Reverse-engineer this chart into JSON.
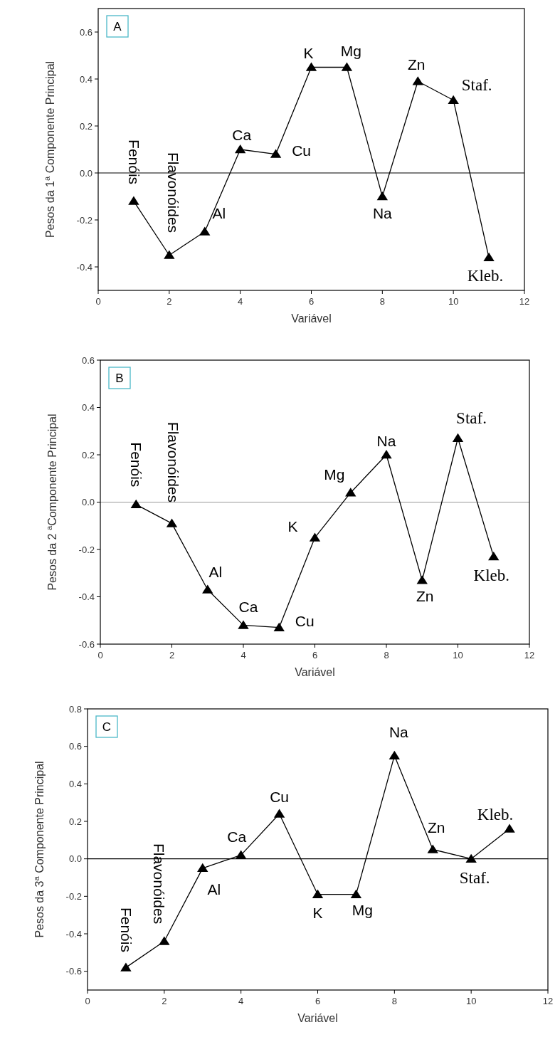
{
  "chart_data": [
    {
      "type": "line",
      "xlabel": "Variável",
      "ylabel": "Pesos da 1$^{a}$ Componente Principal",
      "x": [
        1,
        2,
        3,
        4,
        5,
        6,
        7,
        8,
        9,
        10,
        11
      ],
      "series": [
        {
          "color": "#000000",
          "values": [
            -0.12,
            -0.35,
            -0.25,
            0.1,
            0.08,
            0.45,
            0.45,
            -0.1,
            0.39,
            0.31,
            -0.36
          ]
        }
      ],
      "xlim": [
        0,
        12
      ],
      "xticks": [
        0,
        2,
        4,
        6,
        8,
        10,
        12
      ],
      "ylim": [
        -0.5,
        0.7
      ],
      "yticks": [
        {
          "value": -0.4,
          "label": "-0.4"
        },
        {
          "value": -0.2,
          "label": "-0.2"
        },
        {
          "value": 0,
          "label": "0.0"
        },
        {
          "value": 0.2,
          "label": "0.2"
        },
        {
          "value": 0.4,
          "label": "0.4"
        },
        {
          "value": 0.6,
          "label": "0.6"
        }
      ],
      "ref_lines": [
        {
          "axis": "y",
          "value": 0,
          "color": "#000000"
        }
      ],
      "marker": "triangle",
      "line_style": "solid",
      "grid": false,
      "annotations": [
        "A",
        {
          "text": "Fenóis",
          "x": 1,
          "y": -0.12
        },
        {
          "text": "Flavonóides",
          "x": 2,
          "y": -0.35
        },
        {
          "text": "Al",
          "x": 3,
          "y": -0.25
        },
        {
          "text": "Ca",
          "x": 4,
          "y": 0.1
        },
        {
          "text": "Cu",
          "x": 5,
          "y": 0.08
        },
        {
          "text": "K",
          "x": 6,
          "y": 0.45
        },
        {
          "text": "Mg",
          "x": 7,
          "y": 0.45
        },
        {
          "text": "Na",
          "x": 8,
          "y": -0.1
        },
        {
          "text": "Zn",
          "x": 9,
          "y": 0.39
        },
        {
          "text": "Staf.",
          "x": 10,
          "y": 0.31
        },
        {
          "text": "Kleb.",
          "x": 11,
          "y": -0.36
        }
      ]
    },
    {
      "type": "line",
      "xlabel": "Variável",
      "ylabel": "Pesos da 2 $^{a}$Componente Principal",
      "x": [
        1,
        2,
        3,
        4,
        5,
        6,
        7,
        8,
        9,
        10,
        11
      ],
      "series": [
        {
          "color": "#000000",
          "values": [
            -0.01,
            -0.09,
            -0.37,
            -0.52,
            -0.53,
            -0.15,
            0.04,
            0.2,
            -0.33,
            0.27,
            -0.23
          ]
        }
      ],
      "xlim": [
        0,
        12
      ],
      "xticks": [
        0,
        2,
        4,
        6,
        8,
        10,
        12
      ],
      "ylim": [
        -0.6,
        0.6
      ],
      "yticks": [
        {
          "value": -0.6,
          "label": "-0.6"
        },
        {
          "value": -0.4,
          "label": "-0.4"
        },
        {
          "value": -0.2,
          "label": "-0.2"
        },
        {
          "value": 0,
          "label": "0.0"
        },
        {
          "value": 0.2,
          "label": "0.2"
        },
        {
          "value": 0.4,
          "label": "0.4"
        },
        {
          "value": 0.6,
          "label": "0.6"
        }
      ],
      "ref_lines": [
        {
          "axis": "y",
          "value": 0,
          "color": "#999999"
        }
      ],
      "marker": "triangle",
      "line_style": "solid",
      "grid": false,
      "annotations": [
        "B",
        {
          "text": "Fenóis",
          "x": 1,
          "y": -0.01
        },
        {
          "text": "Flavonóides",
          "x": 2,
          "y": -0.09
        },
        {
          "text": "Al",
          "x": 3,
          "y": -0.37
        },
        {
          "text": "Ca",
          "x": 4,
          "y": -0.52
        },
        {
          "text": "Cu",
          "x": 5,
          "y": -0.53
        },
        {
          "text": "K",
          "x": 6,
          "y": -0.15
        },
        {
          "text": "Mg",
          "x": 7,
          "y": 0.04
        },
        {
          "text": "Na",
          "x": 8,
          "y": 0.2
        },
        {
          "text": "Zn",
          "x": 9,
          "y": -0.33
        },
        {
          "text": "Staf.",
          "x": 10,
          "y": 0.27
        },
        {
          "text": "Kleb.",
          "x": 11,
          "y": -0.23
        }
      ]
    },
    {
      "type": "line",
      "xlabel": "Variável",
      "ylabel": "Pesos da 3$^{a}$  Componente Principal",
      "x": [
        1,
        2,
        3,
        4,
        5,
        6,
        7,
        8,
        9,
        10,
        11
      ],
      "series": [
        {
          "color": "#000000",
          "values": [
            -0.58,
            -0.44,
            -0.05,
            0.02,
            0.24,
            -0.19,
            -0.19,
            0.55,
            0.05,
            0,
            0.16
          ]
        }
      ],
      "xlim": [
        0,
        12
      ],
      "xticks": [
        0,
        2,
        4,
        6,
        8,
        10,
        12
      ],
      "ylim": [
        -0.7,
        0.8
      ],
      "yticks": [
        {
          "value": -0.6,
          "label": "-0.6"
        },
        {
          "value": -0.4,
          "label": "-0.4"
        },
        {
          "value": -0.2,
          "label": "-0.2"
        },
        {
          "value": 0,
          "label": "0.0"
        },
        {
          "value": 0.2,
          "label": "0.2"
        },
        {
          "value": 0.4,
          "label": "0.4"
        },
        {
          "value": 0.6,
          "label": "0.6"
        },
        {
          "value": 0.8,
          "label": "0.8"
        }
      ],
      "ref_lines": [
        {
          "axis": "y",
          "value": 0,
          "color": "#000000"
        }
      ],
      "marker": "triangle",
      "line_style": "solid",
      "grid": false,
      "annotations": [
        "C",
        {
          "text": "Fenóis",
          "x": 1,
          "y": -0.58
        },
        {
          "text": "Flavonóides",
          "x": 2,
          "y": -0.44
        },
        {
          "text": "Al",
          "x": 3,
          "y": -0.05
        },
        {
          "text": "Ca",
          "x": 4,
          "y": 0.02
        },
        {
          "text": "Cu",
          "x": 5,
          "y": 0.24
        },
        {
          "text": "K",
          "x": 6,
          "y": -0.19
        },
        {
          "text": "Mg",
          "x": 7,
          "y": -0.19
        },
        {
          "text": "Na",
          "x": 8,
          "y": 0.55
        },
        {
          "text": "Zn",
          "x": 9,
          "y": 0.05
        },
        {
          "text": "Staf.",
          "x": 10,
          "y": 0
        },
        {
          "text": "Kleb.",
          "x": 11,
          "y": 0.16
        }
      ]
    }
  ]
}
